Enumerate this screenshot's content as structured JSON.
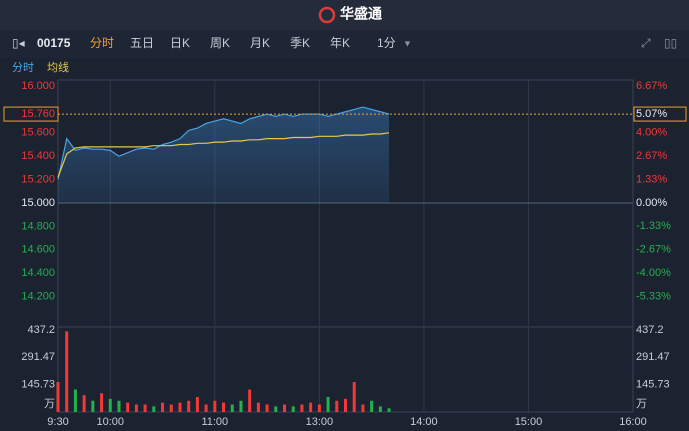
{
  "header": {
    "brand": "华盛通"
  },
  "toolbar": {
    "symbol": "00175",
    "tabs": [
      "分时",
      "五日",
      "日K",
      "周K",
      "月K",
      "季K",
      "年K"
    ],
    "interval": "1分"
  },
  "chart_data": {
    "type": "line",
    "x": [
      "9:30",
      "9:35",
      "9:40",
      "9:45",
      "9:50",
      "9:55",
      "10:00",
      "10:05",
      "10:10",
      "10:15",
      "10:20",
      "10:25",
      "10:30",
      "10:35",
      "10:40",
      "10:45",
      "10:50",
      "10:55",
      "11:00",
      "11:05",
      "11:10",
      "11:15",
      "11:20",
      "11:25",
      "11:30",
      "11:35",
      "11:40",
      "11:45",
      "11:50",
      "11:55",
      "13:00",
      "13:05",
      "13:10",
      "13:15",
      "13:20",
      "13:25",
      "13:30",
      "13:35",
      "13:40"
    ],
    "xlim": [
      "9:30",
      "16:00"
    ],
    "xticks": [
      "9:30",
      "10:00",
      "11:00",
      "13:00",
      "14:00",
      "15:00",
      "16:00"
    ],
    "series": [
      {
        "name": "分时",
        "color": "#4aa3e8",
        "values": [
          15.2,
          15.55,
          15.45,
          15.47,
          15.46,
          15.46,
          15.45,
          15.4,
          15.43,
          15.46,
          15.47,
          15.46,
          15.5,
          15.52,
          15.55,
          15.62,
          15.64,
          15.68,
          15.7,
          15.72,
          15.7,
          15.68,
          15.72,
          15.74,
          15.76,
          15.74,
          15.76,
          15.74,
          15.76,
          15.76,
          15.76,
          15.74,
          15.76,
          15.78,
          15.8,
          15.82,
          15.8,
          15.78,
          15.76
        ]
      },
      {
        "name": "均线",
        "color": "#e6c84a",
        "values": [
          15.22,
          15.42,
          15.47,
          15.48,
          15.48,
          15.48,
          15.48,
          15.48,
          15.48,
          15.48,
          15.48,
          15.49,
          15.49,
          15.49,
          15.5,
          15.5,
          15.51,
          15.51,
          15.52,
          15.52,
          15.53,
          15.53,
          15.54,
          15.54,
          15.55,
          15.55,
          15.55,
          15.56,
          15.56,
          15.56,
          15.57,
          15.57,
          15.57,
          15.58,
          15.58,
          15.58,
          15.59,
          15.59,
          15.6
        ]
      }
    ],
    "ylim": [
      14.0,
      16.0
    ],
    "yticks": [
      {
        "value": 16.0,
        "label": "16.000"
      },
      {
        "value": 15.6,
        "label": "15.600"
      },
      {
        "value": 15.4,
        "label": "15.400"
      },
      {
        "value": 15.2,
        "label": "15.200"
      },
      {
        "value": 15.0,
        "label": "15.000"
      },
      {
        "value": 14.8,
        "label": "14.800"
      },
      {
        "value": 14.6,
        "label": "14.600"
      },
      {
        "value": 14.4,
        "label": "14.400"
      },
      {
        "value": 14.2,
        "label": "14.200"
      }
    ],
    "y2lim": [
      -6.67,
      6.67
    ],
    "y2ticks": [
      {
        "value": 6.67,
        "label": "6.67%"
      },
      {
        "value": 4.0,
        "label": "4.00%"
      },
      {
        "value": 2.67,
        "label": "2.67%"
      },
      {
        "value": 1.33,
        "label": "1.33%"
      },
      {
        "value": 0,
        "label": "0.00%"
      },
      {
        "value": -1.33,
        "label": "-1.33%"
      },
      {
        "value": -2.67,
        "label": "-2.67%"
      },
      {
        "value": -4.0,
        "label": "-4.00%"
      },
      {
        "value": -5.33,
        "label": "-5.33%"
      }
    ],
    "current": {
      "value": 15.76,
      "label": "15.760"
    },
    "current_change": {
      "value": 5.07,
      "label": "5.07%"
    },
    "up_color": "#f23838",
    "down_color": "#22b14c",
    "volume": {
      "unit": "万",
      "values": [
        160,
        430,
        120,
        90,
        60,
        100,
        70,
        60,
        50,
        40,
        40,
        30,
        50,
        40,
        50,
        60,
        80,
        40,
        60,
        50,
        40,
        60,
        120,
        50,
        40,
        30,
        40,
        30,
        40,
        50,
        40,
        80,
        60,
        70,
        160,
        40,
        60,
        30,
        20
      ],
      "ylim": [
        0,
        437.2
      ],
      "yticks": [
        145.73,
        291.47,
        437.2
      ]
    }
  }
}
